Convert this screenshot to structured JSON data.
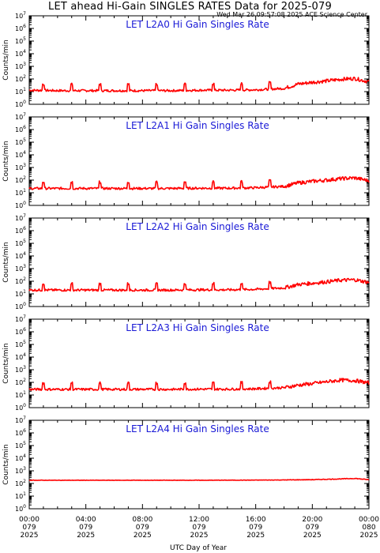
{
  "header": {
    "title": "LET ahead Hi-Gain SINGLES RATES Data for 2025-079",
    "timestamp": "Wed Mar 26 09:57:08 2025 ACE Science Center"
  },
  "colors": {
    "trace": "#ff0000",
    "panel_title": "#1a1ad6",
    "axes": "#000000"
  },
  "chart_data": [
    {
      "type": "line",
      "title": "LET L2A0 Hi Gain Singles Rate",
      "ylabel": "Counts/min",
      "xlabel": "",
      "yscale": "log",
      "ylim": [
        1,
        10000000
      ],
      "ytick_exponents": [
        0,
        1,
        2,
        3,
        4,
        5,
        6,
        7
      ],
      "xlim_hours": [
        0,
        24
      ],
      "series": [
        {
          "x_hours": [
            0,
            2,
            4,
            6,
            8,
            10,
            12,
            14,
            16,
            18,
            19,
            20,
            21,
            22,
            23,
            24
          ],
          "values": [
            13,
            12,
            12,
            12,
            12,
            12,
            13,
            13,
            14,
            18,
            40,
            55,
            70,
            95,
            110,
            60
          ]
        }
      ],
      "spikes_hours": [
        1,
        3,
        5,
        7,
        9,
        11,
        13,
        15,
        17
      ]
    },
    {
      "type": "line",
      "title": "LET L2A1 Hi Gain Singles Rate",
      "ylabel": "Counts/min",
      "xlabel": "",
      "yscale": "log",
      "ylim": [
        1,
        10000000
      ],
      "ytick_exponents": [
        0,
        1,
        2,
        3,
        4,
        5,
        6,
        7
      ],
      "xlim_hours": [
        0,
        24
      ],
      "series": [
        {
          "x_hours": [
            0,
            2,
            4,
            6,
            8,
            10,
            12,
            14,
            16,
            18,
            19,
            20,
            21,
            22,
            23,
            24
          ],
          "values": [
            22,
            22,
            22,
            22,
            22,
            22,
            23,
            23,
            25,
            32,
            60,
            80,
            100,
            130,
            150,
            90
          ]
        }
      ],
      "spikes_hours": [
        1,
        3,
        5,
        7,
        9,
        11,
        13,
        15,
        17
      ]
    },
    {
      "type": "line",
      "title": "LET L2A2 Hi Gain Singles Rate",
      "ylabel": "Counts/min",
      "xlabel": "",
      "yscale": "log",
      "ylim": [
        1,
        10000000
      ],
      "ytick_exponents": [
        0,
        1,
        2,
        3,
        4,
        5,
        6,
        7
      ],
      "xlim_hours": [
        0,
        24
      ],
      "series": [
        {
          "x_hours": [
            0,
            2,
            4,
            6,
            8,
            10,
            12,
            14,
            16,
            18,
            19,
            20,
            21,
            22,
            23,
            24
          ],
          "values": [
            20,
            20,
            20,
            20,
            20,
            20,
            21,
            21,
            23,
            30,
            55,
            70,
            90,
            120,
            130,
            80
          ]
        }
      ],
      "spikes_hours": [
        1,
        3,
        5,
        7,
        9,
        11,
        13,
        15,
        17
      ]
    },
    {
      "type": "line",
      "title": "LET L2A3 Hi Gain Singles Rate",
      "ylabel": "Counts/min",
      "xlabel": "",
      "yscale": "log",
      "ylim": [
        1,
        10000000
      ],
      "ytick_exponents": [
        0,
        1,
        2,
        3,
        4,
        5,
        6,
        7
      ],
      "xlim_hours": [
        0,
        24
      ],
      "series": [
        {
          "x_hours": [
            0,
            2,
            4,
            6,
            8,
            10,
            12,
            14,
            16,
            18,
            19,
            20,
            21,
            22,
            23,
            24
          ],
          "values": [
            28,
            28,
            28,
            28,
            28,
            28,
            29,
            29,
            31,
            38,
            60,
            80,
            110,
            150,
            140,
            90
          ]
        }
      ],
      "spikes_hours": [
        1,
        3,
        5,
        7,
        9,
        11,
        13,
        15,
        17
      ]
    },
    {
      "type": "line",
      "title": "LET L2A4 Hi Gain Singles Rate",
      "ylabel": "Counts/min",
      "xlabel": "UTC Day of Year",
      "yscale": "log",
      "ylim": [
        1,
        10000000
      ],
      "ytick_exponents": [
        0,
        1,
        2,
        3,
        4,
        5,
        6,
        7
      ],
      "xlim_hours": [
        0,
        24
      ],
      "series": [
        {
          "x_hours": [
            0,
            4,
            8,
            12,
            16,
            18,
            20,
            22,
            23,
            24
          ],
          "values": [
            180,
            180,
            180,
            180,
            185,
            190,
            200,
            230,
            250,
            200
          ]
        }
      ],
      "spikes_hours": []
    }
  ],
  "x_axis": {
    "title": "UTC Day of Year",
    "ticks": [
      {
        "hour": 0,
        "time": "00:00",
        "doy": "079",
        "year": "2025"
      },
      {
        "hour": 4,
        "time": "04:00",
        "doy": "079",
        "year": "2025"
      },
      {
        "hour": 8,
        "time": "08:00",
        "doy": "079",
        "year": "2025"
      },
      {
        "hour": 12,
        "time": "12:00",
        "doy": "079",
        "year": "2025"
      },
      {
        "hour": 16,
        "time": "16:00",
        "doy": "079",
        "year": "2025"
      },
      {
        "hour": 20,
        "time": "20:00",
        "doy": "079",
        "year": "2025"
      },
      {
        "hour": 24,
        "time": "00:00",
        "doy": "080",
        "year": "2025"
      }
    ]
  }
}
